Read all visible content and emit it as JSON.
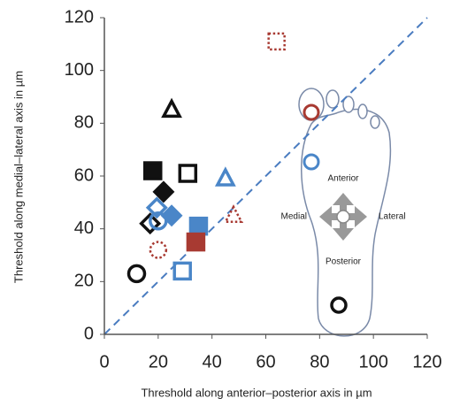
{
  "chart_data": {
    "type": "scatter",
    "x_label": "Threshold along anterior–posterior axis in µm",
    "y_label": "Threshold along medial–lateral axis in µm",
    "xlim": [
      0,
      120
    ],
    "ylim": [
      0,
      120
    ],
    "xticks": [
      0,
      20,
      40,
      60,
      80,
      100,
      120
    ],
    "yticks": [
      0,
      20,
      40,
      60,
      80,
      100,
      120
    ],
    "annotations": [
      "Anterior",
      "Medial",
      "Lateral",
      "Posterior"
    ],
    "points": [
      {
        "x": 64,
        "y": 111,
        "marker": "square",
        "color": "#a83a32",
        "style": "dotted"
      },
      {
        "x": 25,
        "y": 85,
        "marker": "triangle",
        "color": "#111111",
        "style": "open"
      },
      {
        "x": 18,
        "y": 62,
        "marker": "square",
        "color": "#111111",
        "style": "filled"
      },
      {
        "x": 31,
        "y": 61,
        "marker": "square",
        "color": "#111111",
        "style": "open"
      },
      {
        "x": 45,
        "y": 59,
        "marker": "triangle",
        "color": "#4a86c8",
        "style": "open"
      },
      {
        "x": 22,
        "y": 54,
        "marker": "diamond",
        "color": "#111111",
        "style": "filled"
      },
      {
        "x": 17,
        "y": 42,
        "marker": "diamond",
        "color": "#111111",
        "style": "open"
      },
      {
        "x": 20,
        "y": 43,
        "marker": "circle",
        "color": "#4a86c8",
        "style": "open"
      },
      {
        "x": 19.5,
        "y": 48,
        "marker": "diamond",
        "color": "#4a86c8",
        "style": "open"
      },
      {
        "x": 25,
        "y": 45,
        "marker": "diamond",
        "color": "#4a86c8",
        "style": "filled"
      },
      {
        "x": 35,
        "y": 41,
        "marker": "square",
        "color": "#4a86c8",
        "style": "filled"
      },
      {
        "x": 48,
        "y": 45,
        "marker": "triangle",
        "color": "#a83a32",
        "style": "dotted"
      },
      {
        "x": 20,
        "y": 32,
        "marker": "circle",
        "color": "#a83a32",
        "style": "dotted"
      },
      {
        "x": 34,
        "y": 35,
        "marker": "square",
        "color": "#a83a32",
        "style": "filled"
      },
      {
        "x": 29,
        "y": 24,
        "marker": "square",
        "color": "#4a86c8",
        "style": "open"
      },
      {
        "x": 12,
        "y": 23,
        "marker": "circle",
        "color": "#111111",
        "style": "open"
      }
    ]
  }
}
